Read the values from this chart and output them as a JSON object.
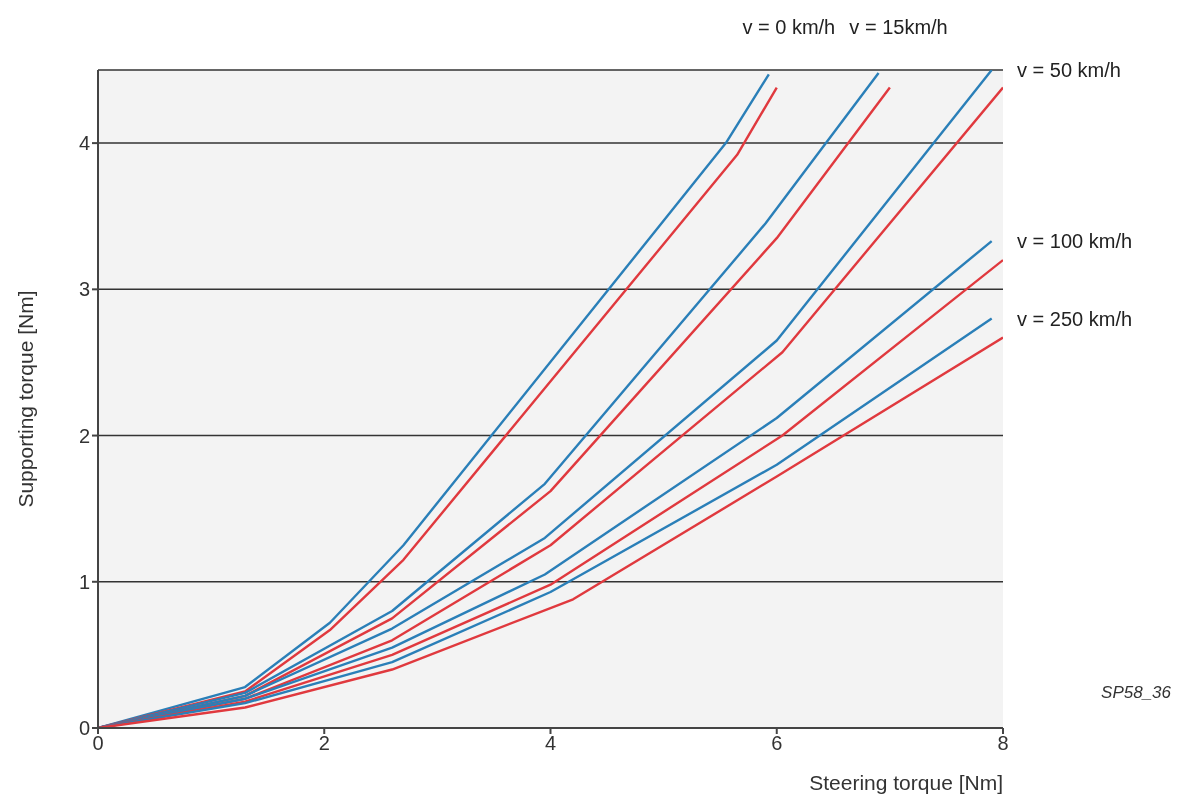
{
  "chart_data": {
    "type": "line",
    "xlabel": "Steering torque [Nm]",
    "ylabel": "Supporting torque [Nm]",
    "xlim": [
      0,
      8
    ],
    "ylim": [
      0,
      4.5
    ],
    "xticks": [
      0,
      2,
      4,
      6,
      8
    ],
    "yticks": [
      0,
      1,
      2,
      3,
      4
    ],
    "grid": "y",
    "marker": "none",
    "line_style": "solid",
    "series": [
      {
        "color": "#2a7fb8",
        "x": [
          0,
          1.3,
          2.05,
          2.7,
          5.55,
          5.93
        ],
        "values": [
          0,
          0.28,
          0.72,
          1.25,
          4.0,
          4.47
        ]
      },
      {
        "color": "#e0393e",
        "x": [
          0,
          1.3,
          2.05,
          2.7,
          5.65,
          6.0
        ],
        "values": [
          0,
          0.25,
          0.67,
          1.15,
          3.92,
          4.38
        ]
      },
      {
        "color": "#2a7fb8",
        "x": [
          0,
          1.3,
          2.6,
          3.95,
          5.9,
          6.9
        ],
        "values": [
          0,
          0.24,
          0.8,
          1.67,
          3.45,
          4.48
        ]
      },
      {
        "color": "#e0393e",
        "x": [
          0,
          1.3,
          2.6,
          4.0,
          6.0,
          7.0
        ],
        "values": [
          0,
          0.22,
          0.75,
          1.62,
          3.35,
          4.38
        ]
      },
      {
        "color": "#2a7fb8",
        "x": [
          0,
          1.3,
          2.6,
          3.95,
          6.0,
          7.9
        ],
        "values": [
          0,
          0.22,
          0.68,
          1.3,
          2.65,
          4.5
        ]
      },
      {
        "color": "#e0393e",
        "x": [
          0,
          1.3,
          2.6,
          4.0,
          6.05,
          8.0
        ],
        "values": [
          0,
          0.2,
          0.6,
          1.25,
          2.57,
          4.38
        ]
      },
      {
        "color": "#2a7fb8",
        "x": [
          0,
          1.3,
          2.6,
          3.95,
          6.0,
          7.9
        ],
        "values": [
          0,
          0.2,
          0.55,
          1.05,
          2.12,
          3.33
        ]
      },
      {
        "color": "#e0393e",
        "x": [
          0,
          1.3,
          2.6,
          4.0,
          6.05,
          8.0
        ],
        "values": [
          0,
          0.18,
          0.5,
          0.98,
          2.0,
          3.2
        ]
      },
      {
        "color": "#2a7fb8",
        "x": [
          0,
          1.3,
          2.6,
          4.0,
          6.0,
          7.9
        ],
        "values": [
          0,
          0.17,
          0.45,
          0.93,
          1.8,
          2.8
        ]
      },
      {
        "color": "#e0393e",
        "x": [
          0,
          1.3,
          2.6,
          4.2,
          6.0,
          8.0
        ],
        "values": [
          0,
          0.14,
          0.4,
          0.88,
          1.72,
          2.67
        ]
      }
    ],
    "annotations": [
      {
        "text": "v = 0 km/h",
        "x": 5.93,
        "y": 4.47
      },
      {
        "text": "v = 15km/h",
        "x": 6.9,
        "y": 4.48
      },
      {
        "text": "v = 50 km/h",
        "x": 7.9,
        "y": 4.5
      },
      {
        "text": "v = 100 km/h",
        "x": 7.9,
        "y": 3.33
      },
      {
        "text": "v = 250 km/h",
        "x": 7.9,
        "y": 2.8
      },
      "SP58_36"
    ]
  }
}
